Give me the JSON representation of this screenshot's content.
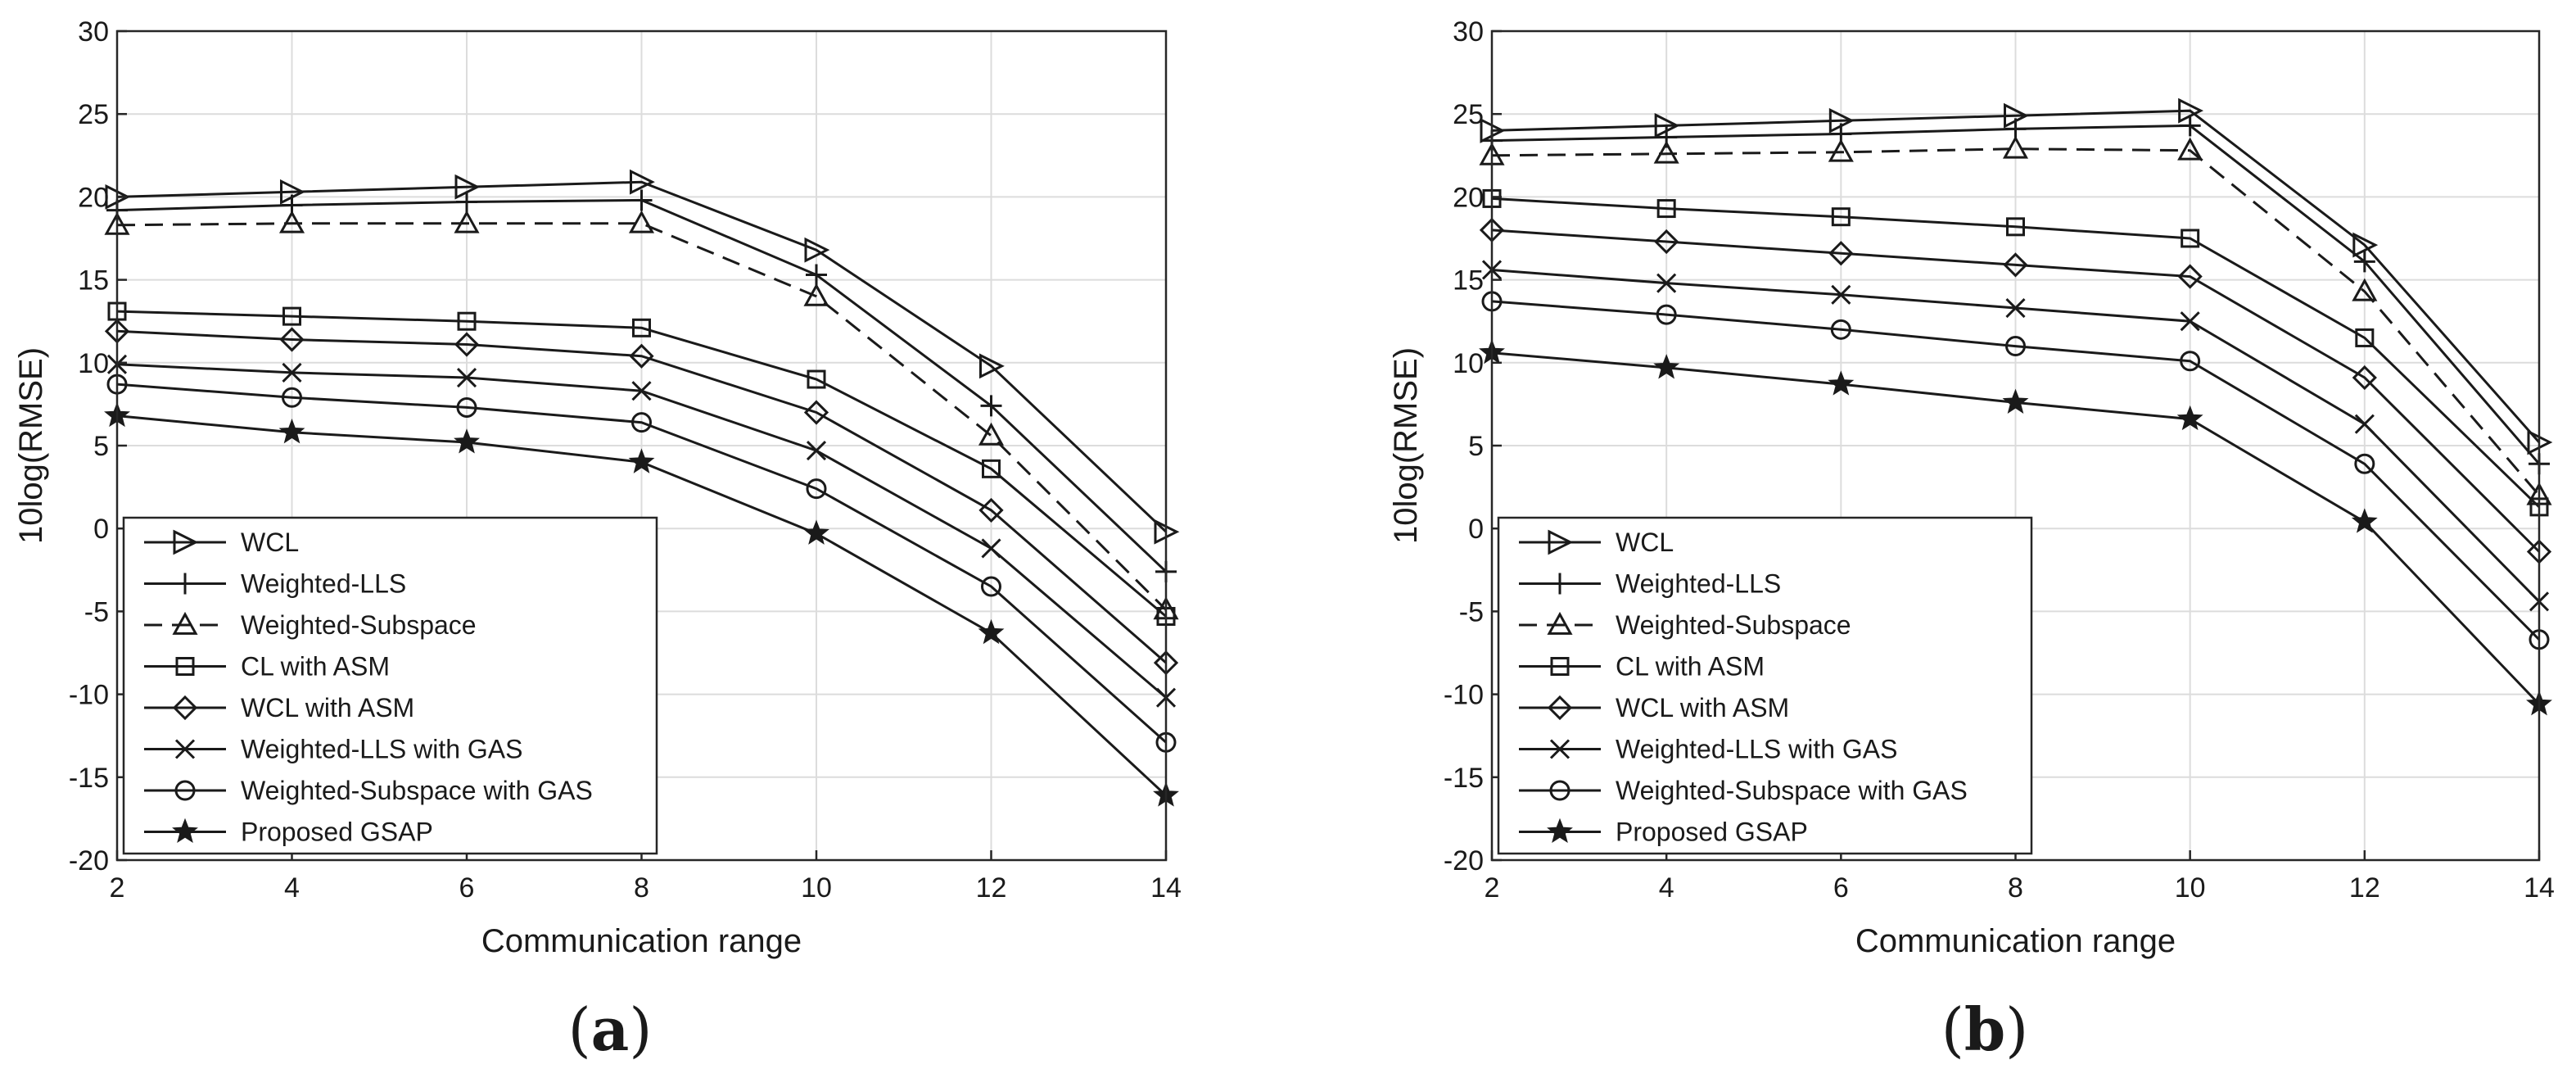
{
  "figure": {
    "panels": [
      {
        "label_open": "(",
        "label_letter": "a",
        "label_close": ")"
      },
      {
        "label_open": "(",
        "label_letter": "b",
        "label_close": ")"
      }
    ]
  },
  "colors": {
    "line": "#1a1a1a",
    "grid": "#dcdcdc",
    "axis": "#262626",
    "background": "#ffffff"
  },
  "chart_data": [
    {
      "type": "line",
      "title": "",
      "xlabel": "Communication range",
      "ylabel": "10log(RMSE)",
      "x": [
        2,
        4,
        6,
        8,
        10,
        12,
        14
      ],
      "xlim": [
        2,
        14
      ],
      "ylim": [
        -20,
        30
      ],
      "xticks": [
        2,
        4,
        6,
        8,
        10,
        12,
        14
      ],
      "yticks": [
        -20,
        -15,
        -10,
        -5,
        0,
        5,
        10,
        15,
        20,
        25,
        30
      ],
      "grid": true,
      "legend_position": "bottom-left",
      "series": [
        {
          "name": "WCL",
          "marker": "triangle-right",
          "dash": "solid",
          "values": [
            20.0,
            20.3,
            20.6,
            20.9,
            16.8,
            9.8,
            -0.2
          ]
        },
        {
          "name": "Weighted-LLS",
          "marker": "plus",
          "dash": "solid",
          "values": [
            19.2,
            19.5,
            19.7,
            19.8,
            15.3,
            7.4,
            -2.6
          ]
        },
        {
          "name": "Weighted-Subspace",
          "marker": "triangle-up",
          "dash": "dashed",
          "values": [
            18.3,
            18.4,
            18.4,
            18.4,
            14.0,
            5.6,
            -4.9
          ]
        },
        {
          "name": "CL with ASM",
          "marker": "square",
          "dash": "solid",
          "values": [
            13.1,
            12.8,
            12.5,
            12.1,
            9.0,
            3.6,
            -5.3
          ]
        },
        {
          "name": "WCL with ASM",
          "marker": "diamond",
          "dash": "solid",
          "values": [
            11.9,
            11.4,
            11.1,
            10.4,
            7.0,
            1.1,
            -8.1
          ]
        },
        {
          "name": "Weighted-LLS with GAS",
          "marker": "x",
          "dash": "solid",
          "values": [
            9.9,
            9.4,
            9.1,
            8.3,
            4.7,
            -1.2,
            -10.2
          ]
        },
        {
          "name": "Weighted-Subspace with GAS",
          "marker": "circle",
          "dash": "solid",
          "values": [
            8.7,
            7.9,
            7.3,
            6.4,
            2.4,
            -3.5,
            -12.9
          ]
        },
        {
          "name": "Proposed GSAP",
          "marker": "star",
          "dash": "solid",
          "values": [
            6.8,
            5.8,
            5.2,
            4.0,
            -0.3,
            -6.3,
            -16.1
          ]
        }
      ]
    },
    {
      "type": "line",
      "title": "",
      "xlabel": "Communication range",
      "ylabel": "10log(RMSE)",
      "x": [
        2,
        4,
        6,
        8,
        10,
        12,
        14
      ],
      "xlim": [
        2,
        14
      ],
      "ylim": [
        -20,
        30
      ],
      "xticks": [
        2,
        4,
        6,
        8,
        10,
        12,
        14
      ],
      "yticks": [
        -20,
        -15,
        -10,
        -5,
        0,
        5,
        10,
        15,
        20,
        25,
        30
      ],
      "grid": true,
      "legend_position": "bottom-left",
      "series": [
        {
          "name": "WCL",
          "marker": "triangle-right",
          "dash": "solid",
          "values": [
            24.0,
            24.3,
            24.6,
            24.9,
            25.2,
            17.1,
            5.2
          ]
        },
        {
          "name": "Weighted-LLS",
          "marker": "plus",
          "dash": "solid",
          "values": [
            23.4,
            23.6,
            23.8,
            24.1,
            24.3,
            16.1,
            3.9
          ]
        },
        {
          "name": "Weighted-Subspace",
          "marker": "triangle-up",
          "dash": "dashed",
          "values": [
            22.5,
            22.6,
            22.7,
            22.9,
            22.8,
            14.3,
            2.0
          ]
        },
        {
          "name": "CL with ASM",
          "marker": "square",
          "dash": "solid",
          "values": [
            19.9,
            19.3,
            18.8,
            18.2,
            17.5,
            11.5,
            1.3
          ]
        },
        {
          "name": "WCL with ASM",
          "marker": "diamond",
          "dash": "solid",
          "values": [
            18.0,
            17.3,
            16.6,
            15.9,
            15.2,
            9.1,
            -1.4
          ]
        },
        {
          "name": "Weighted-LLS with GAS",
          "marker": "x",
          "dash": "solid",
          "values": [
            15.6,
            14.8,
            14.1,
            13.3,
            12.5,
            6.3,
            -4.4
          ]
        },
        {
          "name": "Weighted-Subspace with GAS",
          "marker": "circle",
          "dash": "solid",
          "values": [
            13.7,
            12.9,
            12.0,
            11.0,
            10.1,
            3.9,
            -6.7
          ]
        },
        {
          "name": "Proposed GSAP",
          "marker": "star",
          "dash": "solid",
          "values": [
            10.6,
            9.7,
            8.7,
            7.6,
            6.6,
            0.4,
            -10.6
          ]
        }
      ]
    }
  ]
}
